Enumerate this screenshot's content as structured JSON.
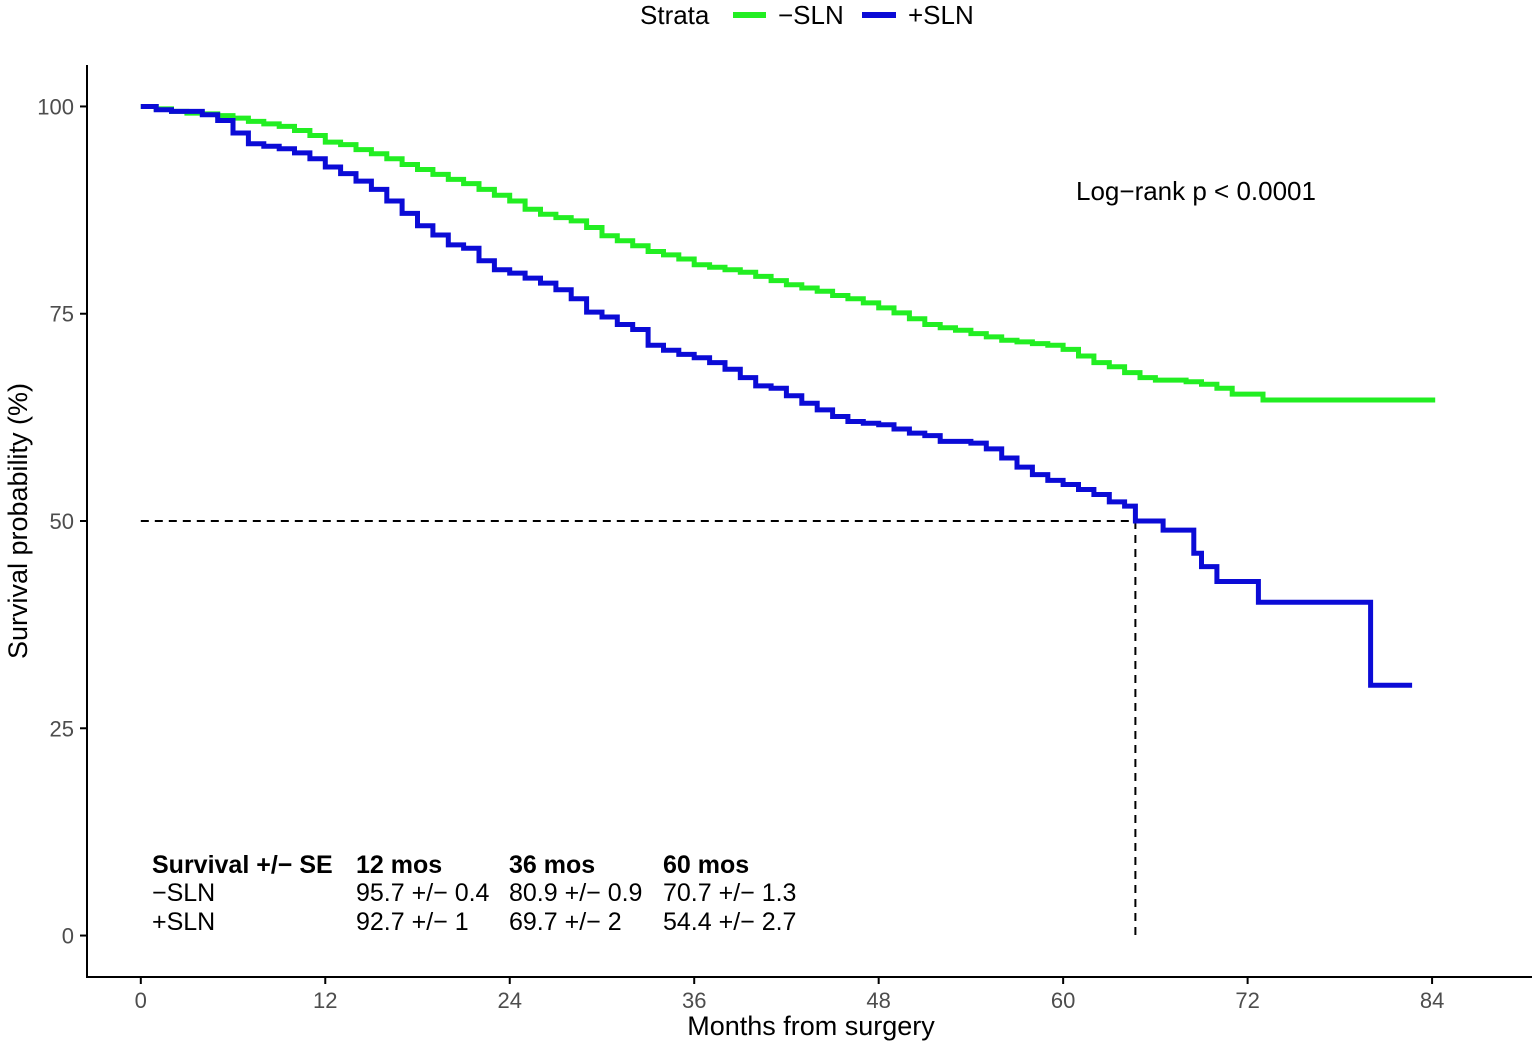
{
  "chart_data": {
    "type": "line",
    "xlabel": "Months from surgery",
    "ylabel": "Survival probability (%)",
    "xlim": [
      -3.5,
      90.5
    ],
    "ylim": [
      -5,
      105
    ],
    "x_ticks": [
      0,
      12,
      24,
      36,
      48,
      60,
      72,
      84
    ],
    "y_ticks": [
      0,
      25,
      50,
      75,
      100
    ],
    "grid": false,
    "legend": {
      "title": "Strata",
      "placement": "top",
      "entries": [
        {
          "label": "−SLN",
          "color": "#22ee22"
        },
        {
          "label": "+SLN",
          "color": "#0b0bd6"
        }
      ]
    },
    "annotation": "Log−rank  p < 0.0001",
    "median_line": {
      "y": 50,
      "x": 64.7
    },
    "series": [
      {
        "name": "−SLN",
        "color": "#22ee22",
        "step": true,
        "points": [
          [
            0,
            100
          ],
          [
            1,
            99.7
          ],
          [
            2,
            99.4
          ],
          [
            3,
            99.2
          ],
          [
            4,
            99.1
          ],
          [
            5,
            98.9
          ],
          [
            6,
            98.6
          ],
          [
            7,
            98.2
          ],
          [
            8,
            97.9
          ],
          [
            9,
            97.6
          ],
          [
            10,
            97.1
          ],
          [
            11,
            96.5
          ],
          [
            12,
            95.7
          ],
          [
            13,
            95.4
          ],
          [
            14,
            94.8
          ],
          [
            15,
            94.3
          ],
          [
            16,
            93.7
          ],
          [
            17,
            93.0
          ],
          [
            18,
            92.4
          ],
          [
            19,
            91.8
          ],
          [
            20,
            91.2
          ],
          [
            21,
            90.7
          ],
          [
            22,
            90.0
          ],
          [
            23,
            89.3
          ],
          [
            24,
            88.6
          ],
          [
            25,
            87.6
          ],
          [
            26,
            87.0
          ],
          [
            27,
            86.6
          ],
          [
            28,
            86.2
          ],
          [
            29,
            85.4
          ],
          [
            30,
            84.4
          ],
          [
            31,
            83.8
          ],
          [
            32,
            83.2
          ],
          [
            33,
            82.5
          ],
          [
            34,
            82.1
          ],
          [
            35,
            81.6
          ],
          [
            36,
            80.9
          ],
          [
            37,
            80.6
          ],
          [
            38,
            80.3
          ],
          [
            39,
            80.0
          ],
          [
            40,
            79.5
          ],
          [
            41,
            79.0
          ],
          [
            42,
            78.5
          ],
          [
            43,
            78.1
          ],
          [
            44,
            77.7
          ],
          [
            45,
            77.2
          ],
          [
            46,
            76.8
          ],
          [
            47,
            76.3
          ],
          [
            48,
            75.7
          ],
          [
            49,
            75.1
          ],
          [
            50,
            74.4
          ],
          [
            51,
            73.7
          ],
          [
            52,
            73.3
          ],
          [
            53,
            73.0
          ],
          [
            54,
            72.6
          ],
          [
            55,
            72.2
          ],
          [
            56,
            71.8
          ],
          [
            57,
            71.6
          ],
          [
            58,
            71.4
          ],
          [
            59,
            71.2
          ],
          [
            60,
            70.7
          ],
          [
            61,
            69.9
          ],
          [
            62,
            69.1
          ],
          [
            63,
            68.6
          ],
          [
            64,
            67.9
          ],
          [
            65,
            67.3
          ],
          [
            66,
            67.0
          ],
          [
            68,
            66.8
          ],
          [
            69,
            66.5
          ],
          [
            70,
            66.0
          ],
          [
            71,
            65.3
          ],
          [
            73,
            64.6
          ],
          [
            84.2,
            64.6
          ]
        ]
      },
      {
        "name": "+SLN",
        "color": "#0b0bd6",
        "step": true,
        "points": [
          [
            0,
            100
          ],
          [
            1,
            99.6
          ],
          [
            2,
            99.4
          ],
          [
            4,
            99.0
          ],
          [
            5,
            98.3
          ],
          [
            6,
            96.8
          ],
          [
            7,
            95.5
          ],
          [
            8,
            95.2
          ],
          [
            9,
            94.9
          ],
          [
            10,
            94.4
          ],
          [
            11,
            93.7
          ],
          [
            12,
            92.7
          ],
          [
            13,
            91.9
          ],
          [
            14,
            91.0
          ],
          [
            15,
            90.0
          ],
          [
            16,
            88.6
          ],
          [
            17,
            87.1
          ],
          [
            18,
            85.6
          ],
          [
            19,
            84.5
          ],
          [
            20,
            83.3
          ],
          [
            21,
            82.9
          ],
          [
            22,
            81.4
          ],
          [
            23,
            80.3
          ],
          [
            24,
            79.9
          ],
          [
            25,
            79.3
          ],
          [
            26,
            78.7
          ],
          [
            27,
            77.9
          ],
          [
            28,
            76.8
          ],
          [
            29,
            75.2
          ],
          [
            30,
            74.6
          ],
          [
            31,
            73.7
          ],
          [
            32,
            73.1
          ],
          [
            33,
            71.2
          ],
          [
            34,
            70.6
          ],
          [
            35,
            70.1
          ],
          [
            36,
            69.7
          ],
          [
            37,
            69.1
          ],
          [
            38,
            68.3
          ],
          [
            39,
            67.3
          ],
          [
            40,
            66.3
          ],
          [
            41,
            66.0
          ],
          [
            42,
            65.1
          ],
          [
            43,
            64.2
          ],
          [
            44,
            63.4
          ],
          [
            45,
            62.6
          ],
          [
            46,
            62.0
          ],
          [
            47,
            61.8
          ],
          [
            48,
            61.6
          ],
          [
            49,
            61.1
          ],
          [
            50,
            60.6
          ],
          [
            51,
            60.3
          ],
          [
            52,
            59.6
          ],
          [
            53,
            59.6
          ],
          [
            54,
            59.4
          ],
          [
            55,
            58.7
          ],
          [
            56,
            57.6
          ],
          [
            57,
            56.5
          ],
          [
            58,
            55.6
          ],
          [
            59,
            54.9
          ],
          [
            60,
            54.4
          ],
          [
            61,
            53.8
          ],
          [
            62,
            53.2
          ],
          [
            63,
            52.3
          ],
          [
            64,
            51.8
          ],
          [
            64.7,
            50.0
          ],
          [
            66.5,
            48.9
          ],
          [
            68.5,
            46.1
          ],
          [
            69,
            44.5
          ],
          [
            70,
            42.7
          ],
          [
            72.7,
            40.2
          ],
          [
            80.0,
            30.2
          ],
          [
            82.7,
            30.2
          ]
        ]
      }
    ],
    "table": {
      "header": [
        "Survival +/− SE",
        "12 mos",
        "36 mos",
        "60 mos"
      ],
      "rows": [
        [
          "−SLN",
          "95.7 +/− 0.4",
          "80.9 +/− 0.9",
          "70.7 +/− 1.3"
        ],
        [
          "+SLN",
          "92.7 +/− 1",
          "69.7 +/− 2",
          "54.4 +/− 2.7"
        ]
      ]
    }
  }
}
